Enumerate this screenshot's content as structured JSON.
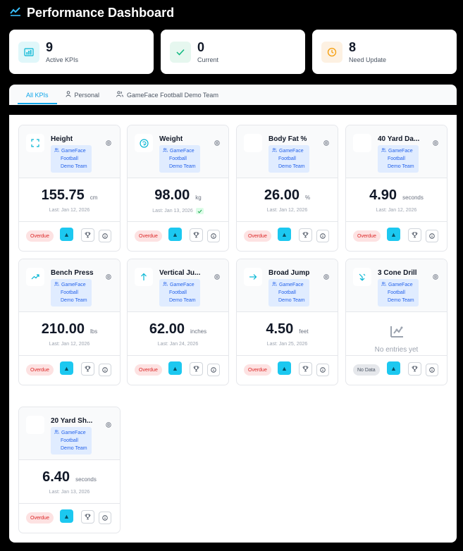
{
  "header": {
    "title": "Performance Dashboard",
    "icon": "trend-line-icon"
  },
  "summary": [
    {
      "value": "9",
      "label": "Active KPIs",
      "icon": "bar-chart-icon",
      "color": "#06b6d4",
      "bg": "#e0f7fa"
    },
    {
      "value": "0",
      "label": "Current",
      "icon": "check-icon",
      "color": "#10b981",
      "bg": "#e6f7ef"
    },
    {
      "value": "8",
      "label": "Need Update",
      "icon": "clock-icon",
      "color": "#f59e0b",
      "bg": "#fdf1e2"
    }
  ],
  "tabs": [
    {
      "label": "All KPIs",
      "active": true
    },
    {
      "label": "Personal",
      "icon": "user-icon"
    },
    {
      "label": "GameFace Football Demo Team",
      "icon": "users-icon"
    }
  ],
  "team_tag": [
    "GameFace",
    "Football",
    "Demo Team"
  ],
  "kpis": [
    {
      "name": "Height",
      "value": "155.75",
      "unit": "cm",
      "last": "Last: Jan 12, 2026",
      "status": "Overdue",
      "icon": "expand-icon"
    },
    {
      "name": "Weight",
      "value": "98.00",
      "unit": "kg",
      "last": "Last: Jan 13, 2026",
      "status": "Overdue",
      "icon": "scale-icon",
      "verified": true
    },
    {
      "name": "Body Fat %",
      "value": "26.00",
      "unit": "%",
      "last": "Last: Jan 12, 2026",
      "status": "Overdue",
      "icon": ""
    },
    {
      "name": "40 Yard Da...",
      "value": "4.90",
      "unit": "seconds",
      "last": "Last: Jan 12, 2026",
      "status": "Overdue",
      "icon": ""
    },
    {
      "name": "Bench Press",
      "value": "210.00",
      "unit": "lbs",
      "last": "Last: Jan 12, 2026",
      "status": "Overdue",
      "icon": "trend-up-icon"
    },
    {
      "name": "Vertical Ju...",
      "value": "62.00",
      "unit": "inches",
      "last": "Last: Jan 24, 2026",
      "status": "Overdue",
      "icon": "arrow-up-icon"
    },
    {
      "name": "Broad Jump",
      "value": "4.50",
      "unit": "feet",
      "last": "Last: Jan 25, 2026",
      "status": "Overdue",
      "icon": "arrow-right-icon"
    },
    {
      "name": "3 Cone Drill",
      "empty": "No entries yet",
      "status": "No Data",
      "icon": "turn-arrow-icon"
    },
    {
      "name": "20 Yard Sh...",
      "value": "6.40",
      "unit": "seconds",
      "last": "Last: Jan 13, 2026",
      "status": "Overdue",
      "icon": ""
    }
  ]
}
